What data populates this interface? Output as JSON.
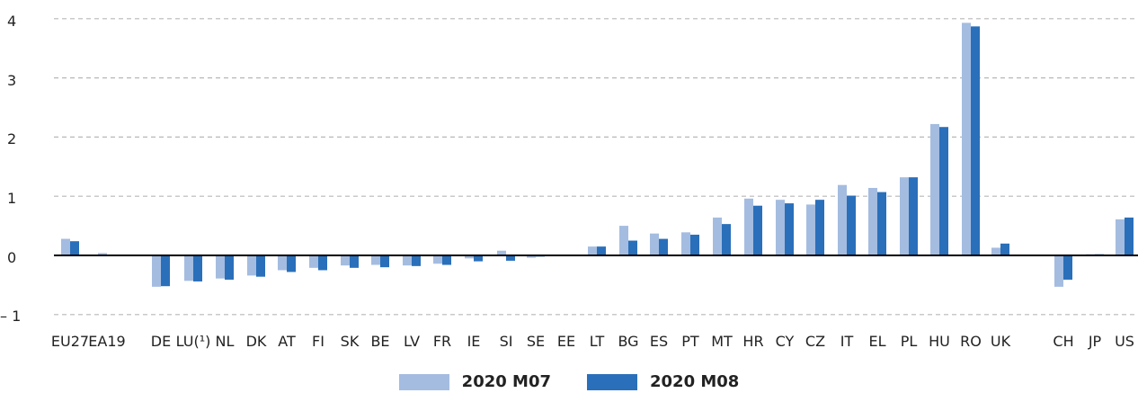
{
  "chart_data": {
    "type": "bar",
    "categories": [
      "EU27",
      "EA19",
      "DE",
      "LU(¹)",
      "NL",
      "DK",
      "AT",
      "FI",
      "SK",
      "BE",
      "LV",
      "FR",
      "IE",
      "SI",
      "SE",
      "EE",
      "LT",
      "BG",
      "ES",
      "PT",
      "MT",
      "HR",
      "CY",
      "CZ",
      "IT",
      "EL",
      "PL",
      "HU",
      "RO",
      "UK",
      "CH",
      "JP",
      "US"
    ],
    "series": [
      {
        "name": "2020 M07",
        "color": "#a4bce0",
        "values": [
          0.28,
          0.04,
          -0.53,
          -0.43,
          -0.39,
          -0.34,
          -0.25,
          -0.21,
          -0.17,
          -0.16,
          -0.17,
          -0.14,
          -0.05,
          0.08,
          -0.04,
          0.0,
          0.15,
          0.5,
          0.37,
          0.39,
          0.64,
          0.96,
          0.94,
          0.86,
          1.19,
          1.14,
          1.32,
          2.22,
          3.93,
          0.13,
          -0.53,
          0.02,
          0.61
        ]
      },
      {
        "name": "2020 M08",
        "color": "#2a6fba",
        "values": [
          0.24,
          0.0,
          -0.52,
          -0.44,
          -0.41,
          -0.36,
          -0.28,
          -0.25,
          -0.21,
          -0.2,
          -0.18,
          -0.16,
          -0.1,
          -0.09,
          -0.02,
          0.0,
          0.15,
          0.25,
          0.28,
          0.35,
          0.53,
          0.84,
          0.88,
          0.94,
          1.01,
          1.07,
          1.32,
          2.17,
          3.87,
          0.2,
          -0.41,
          0.02,
          0.64
        ]
      }
    ],
    "ylim": [
      -1,
      4
    ],
    "yticks": [
      "4",
      "3",
      "2",
      "1",
      "0",
      "– 1"
    ],
    "grid": true,
    "legend_position": "bottom-center",
    "title": "",
    "xlabel": "",
    "ylabel": ""
  }
}
